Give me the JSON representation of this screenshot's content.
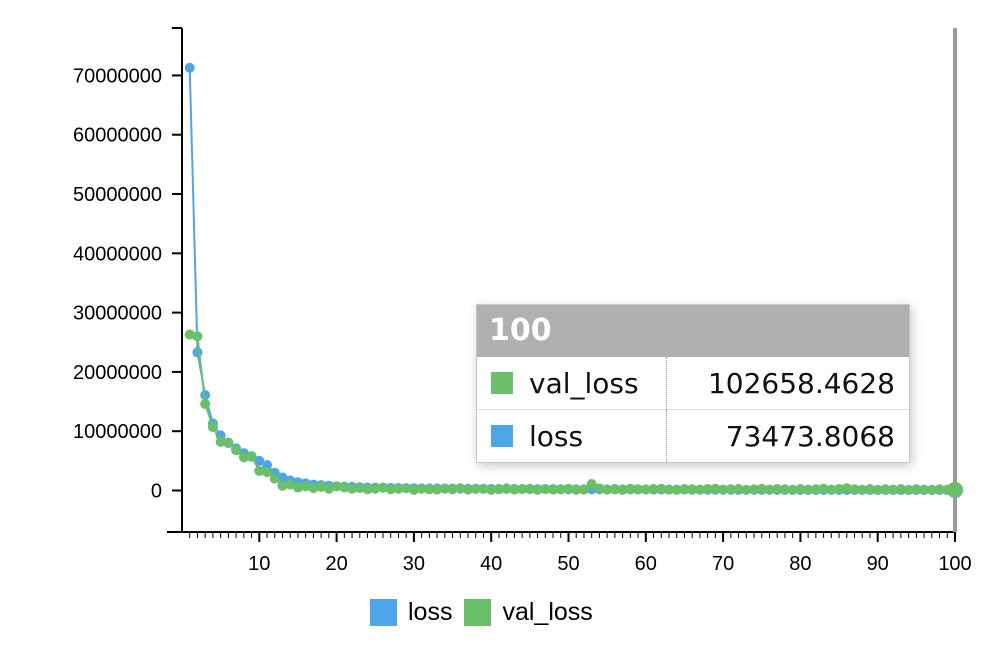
{
  "chart_data": {
    "type": "line",
    "title": "",
    "xlabel": "",
    "ylabel": "",
    "xlim": [
      0,
      100
    ],
    "ylim": [
      -7000000,
      78000000
    ],
    "x_ticks": [
      10,
      20,
      30,
      40,
      50,
      60,
      70,
      80,
      90,
      100
    ],
    "x_tick_labels": [
      "10",
      "20",
      "30",
      "40",
      "50",
      "60",
      "70",
      "80",
      "90",
      "100"
    ],
    "y_ticks": [
      0,
      10000000,
      20000000,
      30000000,
      40000000,
      50000000,
      60000000,
      70000000
    ],
    "y_tick_labels": [
      "0",
      "10000000",
      "20000000",
      "30000000",
      "40000000",
      "50000000",
      "60000000",
      "70000000"
    ],
    "series": [
      {
        "name": "loss",
        "color": "#4ea6ea",
        "x": [
          1,
          2,
          3,
          4,
          5,
          6,
          7,
          8,
          9,
          10,
          11,
          12,
          13,
          14,
          15,
          16,
          17,
          18,
          19,
          20,
          21,
          22,
          23,
          24,
          25,
          26,
          27,
          28,
          29,
          30,
          31,
          32,
          33,
          34,
          35,
          36,
          37,
          38,
          39,
          40,
          41,
          42,
          43,
          44,
          45,
          46,
          47,
          48,
          49,
          50,
          51,
          52,
          53,
          54,
          55,
          56,
          57,
          58,
          59,
          60,
          61,
          62,
          63,
          64,
          65,
          66,
          67,
          68,
          69,
          70,
          71,
          72,
          73,
          74,
          75,
          76,
          77,
          78,
          79,
          80,
          81,
          82,
          83,
          84,
          85,
          86,
          87,
          88,
          89,
          90,
          91,
          92,
          93,
          94,
          95,
          96,
          97,
          98,
          99,
          100
        ],
        "values": [
          71300000,
          23300000,
          16100000,
          11300000,
          9300000,
          8000000,
          7100000,
          6300000,
          5700000,
          5000000,
          4300000,
          3000000,
          2200000,
          1700000,
          1400000,
          1200000,
          1000000,
          900000,
          800000,
          700000,
          650000,
          600000,
          550000,
          500000,
          480000,
          460000,
          440000,
          420000,
          400000,
          380000,
          360000,
          350000,
          340000,
          330000,
          320000,
          310000,
          300000,
          290000,
          280000,
          270000,
          260000,
          255000,
          250000,
          245000,
          240000,
          235000,
          230000,
          225000,
          220000,
          215000,
          210000,
          205000,
          200000,
          195000,
          190000,
          185000,
          180000,
          175000,
          170000,
          165000,
          160000,
          156000,
          152000,
          148000,
          144000,
          140000,
          136000,
          132000,
          128000,
          124000,
          120000,
          117000,
          114000,
          111000,
          108000,
          105000,
          102000,
          99000,
          96000,
          93000,
          91000,
          89000,
          87000,
          85000,
          83000,
          81000,
          80000,
          79000,
          78000,
          77500,
          77000,
          76500,
          76000,
          75500,
          75000,
          74700,
          74400,
          74100,
          73800,
          73473.8068
        ]
      },
      {
        "name": "val_loss",
        "color": "#6abf69",
        "x": [
          1,
          2,
          3,
          4,
          5,
          6,
          7,
          8,
          9,
          10,
          11,
          12,
          13,
          14,
          15,
          16,
          17,
          18,
          19,
          20,
          21,
          22,
          23,
          24,
          25,
          26,
          27,
          28,
          29,
          30,
          31,
          32,
          33,
          34,
          35,
          36,
          37,
          38,
          39,
          40,
          41,
          42,
          43,
          44,
          45,
          46,
          47,
          48,
          49,
          50,
          51,
          52,
          53,
          54,
          55,
          56,
          57,
          58,
          59,
          60,
          61,
          62,
          63,
          64,
          65,
          66,
          67,
          68,
          69,
          70,
          71,
          72,
          73,
          74,
          75,
          76,
          77,
          78,
          79,
          80,
          81,
          82,
          83,
          84,
          85,
          86,
          87,
          88,
          89,
          90,
          91,
          92,
          93,
          94,
          95,
          96,
          97,
          98,
          99,
          100
        ],
        "values": [
          26300000,
          26000000,
          14600000,
          10700000,
          8200000,
          8100000,
          6800000,
          5600000,
          5800000,
          3300000,
          3100000,
          2000000,
          800000,
          1000000,
          500000,
          700000,
          400000,
          600000,
          300000,
          700000,
          500000,
          300000,
          400000,
          200000,
          300000,
          500000,
          200000,
          300000,
          400000,
          100000,
          300000,
          200000,
          150000,
          300000,
          200000,
          400000,
          150000,
          250000,
          300000,
          100000,
          200000,
          350000,
          150000,
          250000,
          300000,
          100000,
          250000,
          150000,
          200000,
          300000,
          100000,
          150000,
          1100000,
          350000,
          150000,
          250000,
          100000,
          300000,
          200000,
          150000,
          250000,
          300000,
          150000,
          100000,
          250000,
          200000,
          150000,
          250000,
          300000,
          150000,
          200000,
          250000,
          100000,
          200000,
          300000,
          150000,
          250000,
          200000,
          100000,
          250000,
          150000,
          200000,
          300000,
          150000,
          250000,
          400000,
          200000,
          150000,
          250000,
          100000,
          200000,
          150000,
          250000,
          100000,
          200000,
          150000,
          100000,
          200000,
          150000,
          102658.4628
        ]
      }
    ],
    "legend": "bottom",
    "hover_x": 100
  },
  "tooltip": {
    "title": "100",
    "rows": [
      {
        "name": "val_loss",
        "value": "102658.4628",
        "color": "#6abf69"
      },
      {
        "name": "loss",
        "value": "73473.8068",
        "color": "#4ea6ea"
      }
    ]
  },
  "legend": {
    "items": [
      {
        "name": "loss",
        "color": "#4ea6ea"
      },
      {
        "name": "val_loss",
        "color": "#6abf69"
      }
    ]
  }
}
